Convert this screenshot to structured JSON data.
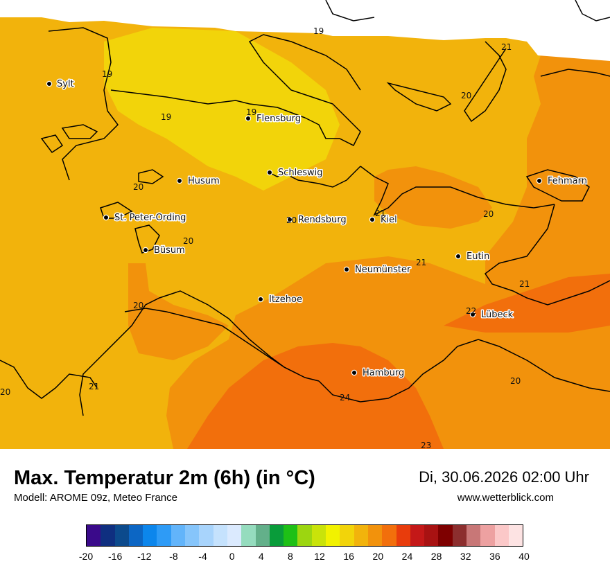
{
  "map": {
    "cities": [
      {
        "name": "Sylt"
      },
      {
        "name": "Flensburg"
      },
      {
        "name": "Schleswig"
      },
      {
        "name": "Husum"
      },
      {
        "name": "Fehmarn"
      },
      {
        "name": "St. Peter-Ording"
      },
      {
        "name": "Rendsburg"
      },
      {
        "name": "Kiel"
      },
      {
        "name": "Büsum"
      },
      {
        "name": "Eutin"
      },
      {
        "name": "Neumünster"
      },
      {
        "name": "Itzehoe"
      },
      {
        "name": "Lübeck"
      },
      {
        "name": "Hamburg"
      }
    ],
    "isotherm_labels": [
      "19",
      "21",
      "19",
      "20",
      "19",
      "19",
      "20",
      "20",
      "20",
      "20",
      "21",
      "21",
      "20",
      "22",
      "21",
      "20",
      "21",
      "24",
      "23",
      "20"
    ]
  },
  "footer": {
    "title": "Max. Temperatur 2m (6h) (in °C)",
    "subtitle": "Modell: AROME 09z, Meteo France",
    "datetime": "Di, 30.06.2026 02:00 Uhr",
    "website": "www.wetterblick.com"
  },
  "legend": {
    "colors": [
      "#3a0a8a",
      "#0f2f80",
      "#0c4a8c",
      "#0c66c4",
      "#0c86ec",
      "#2e9bf6",
      "#62b4fa",
      "#86c5fb",
      "#a8d4fc",
      "#c5e2fd",
      "#dbeafe",
      "#95dcbe",
      "#63b08a",
      "#099c3a",
      "#1ec016",
      "#9cd610",
      "#c9e30a",
      "#f2f200",
      "#f2d40a",
      "#f2b30c",
      "#f2920c",
      "#f26f0c",
      "#e83c0c",
      "#c41818",
      "#a81212",
      "#7e0000",
      "#8c2e2e",
      "#c87777",
      "#eda1a1",
      "#fbc8c8",
      "#fde3e3"
    ],
    "ticks": [
      "-20",
      "-16",
      "-12",
      "-8",
      "-4",
      "0",
      "4",
      "8",
      "12",
      "16",
      "20",
      "24",
      "28",
      "32",
      "36",
      "40"
    ]
  }
}
